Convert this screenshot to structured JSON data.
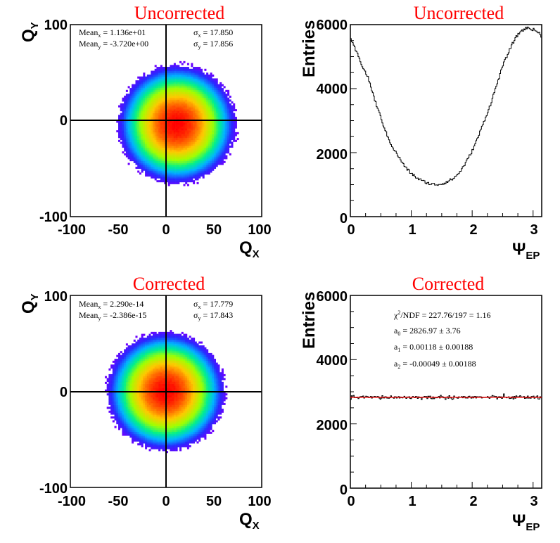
{
  "chart_data": [
    {
      "type": "heatmap",
      "title": "Uncorrected",
      "xlabel": "Q",
      "xlabel_sub": "X",
      "ylabel": "Q",
      "ylabel_sub": "Y",
      "xlim": [
        -100,
        100
      ],
      "ylim": [
        -100,
        100
      ],
      "xticks": [
        "-100",
        "-50",
        "0",
        "50",
        "100"
      ],
      "yticks": [
        "-100",
        "0",
        "100"
      ],
      "center": [
        11.36,
        -3.72
      ],
      "sigma": [
        17.85,
        17.856
      ],
      "stats": {
        "mean_x_label": "Mean",
        "mean_x_sub": "x",
        "mean_x_value": " = 1.136e+01",
        "mean_y_label": "Mean",
        "mean_y_sub": "y",
        "mean_y_value": " = -3.720e+00",
        "sigma_x_label": "σ",
        "sigma_x_sub": "x",
        "sigma_x_value": " = 17.850",
        "sigma_y_label": "σ",
        "sigma_y_sub": "y",
        "sigma_y_value": " = 17.856"
      }
    },
    {
      "type": "line",
      "title": "Uncorrected",
      "xlabel": "Ψ",
      "xlabel_sub": "EP",
      "ylabel": "Entries",
      "xlim": [
        0,
        3.1416
      ],
      "ylim": [
        0,
        6000
      ],
      "xticks": [
        "0",
        "1",
        "2",
        "3"
      ],
      "yticks": [
        "0",
        "2000",
        "4000",
        "6000"
      ],
      "series": [
        {
          "x": [
            0,
            0.1,
            0.2,
            0.3,
            0.4,
            0.5,
            0.6,
            0.7,
            0.8,
            0.9,
            1.0,
            1.1,
            1.2,
            1.3,
            1.4,
            1.5,
            1.6,
            1.7,
            1.8,
            1.9,
            2.0,
            2.1,
            2.2,
            2.3,
            2.4,
            2.5,
            2.6,
            2.7,
            2.8,
            2.9,
            3.0,
            3.1,
            3.14
          ],
          "values": [
            5550,
            5150,
            4700,
            4300,
            3650,
            3100,
            2550,
            2150,
            1850,
            1550,
            1350,
            1200,
            1100,
            1030,
            1000,
            1020,
            1100,
            1200,
            1400,
            1700,
            2050,
            2500,
            3000,
            3500,
            4100,
            4700,
            5150,
            5550,
            5800,
            5900,
            5850,
            5750,
            5550
          ]
        }
      ]
    },
    {
      "type": "heatmap",
      "title": "Corrected",
      "xlabel": "Q",
      "xlabel_sub": "X",
      "ylabel": "Q",
      "ylabel_sub": "Y",
      "xlim": [
        -100,
        100
      ],
      "ylim": [
        -100,
        100
      ],
      "xticks": [
        "-100",
        "-50",
        "0",
        "50",
        "100"
      ],
      "yticks": [
        "-100",
        "0",
        "100"
      ],
      "center": [
        0,
        0
      ],
      "sigma": [
        17.779,
        17.843
      ],
      "stats": {
        "mean_x_label": "Mean",
        "mean_x_sub": "x",
        "mean_x_value": " = 2.290e-14",
        "mean_y_label": "Mean",
        "mean_y_sub": "y",
        "mean_y_value": " = -2.386e-15",
        "sigma_x_label": "σ",
        "sigma_x_sub": "x",
        "sigma_x_value": " = 17.779",
        "sigma_y_label": "σ",
        "sigma_y_sub": "y",
        "sigma_y_value": " = 17.843"
      }
    },
    {
      "type": "line",
      "title": "Corrected",
      "xlabel": "Ψ",
      "xlabel_sub": "EP",
      "ylabel": "Entries",
      "xlim": [
        0,
        3.1416
      ],
      "ylim": [
        0,
        6000
      ],
      "xticks": [
        "0",
        "1",
        "2",
        "3"
      ],
      "yticks": [
        "0",
        "2000",
        "4000",
        "6000"
      ],
      "series": [
        {
          "level": 2827,
          "noise": 60
        }
      ],
      "fit": {
        "color": "#ff0000",
        "level": 2826.97,
        "chi_label": "χ",
        "chi_sup": "2",
        "chi_text": "/NDF    = 227.76/197 =  1.16",
        "a0_label": "a",
        "a0_sub": "0",
        "a0_text": "   = 2826.97 ± 3.76",
        "a1_label": "a",
        "a1_sub": "1",
        "a1_text": "   = 0.00118 ± 0.00188",
        "a2_label": "a",
        "a2_sub": "2",
        "a2_text": "   = -0.00049 ± 0.00188"
      }
    }
  ]
}
